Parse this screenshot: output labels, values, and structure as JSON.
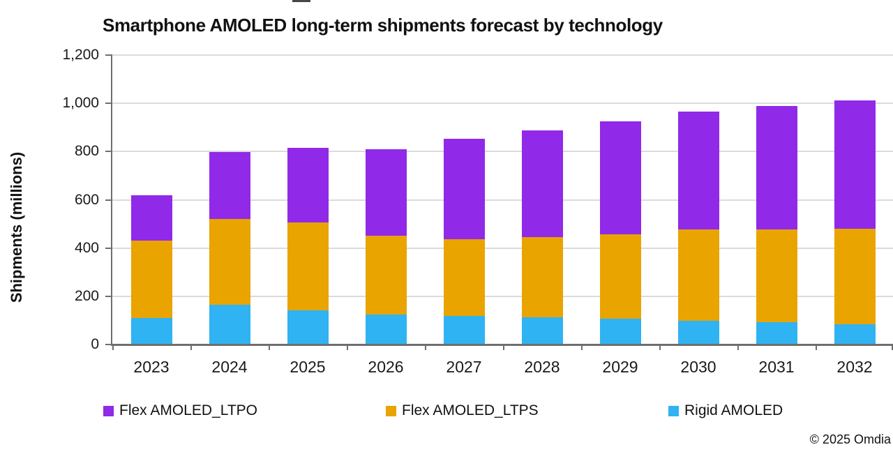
{
  "title": "Smartphone AMOLED long-term shipments forecast by technology",
  "ylabel": "Shipments (millions)",
  "copyright": "© 2025 Omdia",
  "colors": {
    "flex_ltpo": "#9129E8",
    "flex_ltps": "#E9A400",
    "rigid": "#2FB3F2",
    "axis": "#6E6E6E",
    "gridline": "#DBDBDB",
    "text": "#111111"
  },
  "chart_data": {
    "type": "bar",
    "stacked": true,
    "title": "Smartphone AMOLED long-term shipments forecast by technology",
    "xlabel": "",
    "ylabel": "Shipments (millions)",
    "categories": [
      "2023",
      "2024",
      "2025",
      "2026",
      "2027",
      "2028",
      "2029",
      "2030",
      "2031",
      "2032"
    ],
    "series": [
      {
        "name": "Rigid AMOLED",
        "color": "#2FB3F2",
        "values": [
          110,
          165,
          142,
          125,
          118,
          113,
          106,
          98,
          92,
          85
        ]
      },
      {
        "name": "Flex AMOLED_LTPS",
        "color": "#E9A400",
        "values": [
          322,
          356,
          364,
          327,
          320,
          332,
          350,
          378,
          385,
          394
        ]
      },
      {
        "name": "Flex AMOLED_LTPO",
        "color": "#9129E8",
        "values": [
          188,
          277,
          309,
          358,
          414,
          444,
          468,
          490,
          511,
          532
        ]
      }
    ],
    "stack_totals": [
      620,
      798,
      815,
      810,
      852,
      889,
      924,
      966,
      988,
      1011
    ],
    "ylim": [
      0,
      1200
    ],
    "yticks": [
      0,
      200,
      400,
      600,
      800,
      1000,
      1200
    ],
    "grid": true,
    "legend_position": "bottom"
  },
  "legend": [
    {
      "label": "Flex AMOLED_LTPO",
      "color": "#9129E8"
    },
    {
      "label": "Flex AMOLED_LTPS",
      "color": "#E9A400"
    },
    {
      "label": "Rigid AMOLED",
      "color": "#2FB3F2"
    }
  ]
}
